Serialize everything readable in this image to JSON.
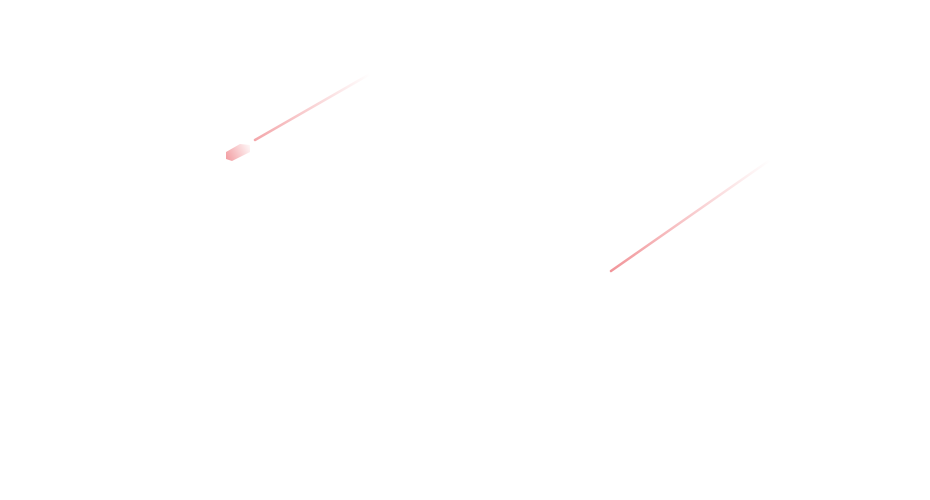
{
  "background_color": "#ffffff",
  "streak_color": "#f08a8f",
  "decorations": [
    {
      "name": "shooting-streak-left",
      "icon": "meteor-streak"
    },
    {
      "name": "shooting-streak-right",
      "icon": "meteor-streak"
    }
  ]
}
